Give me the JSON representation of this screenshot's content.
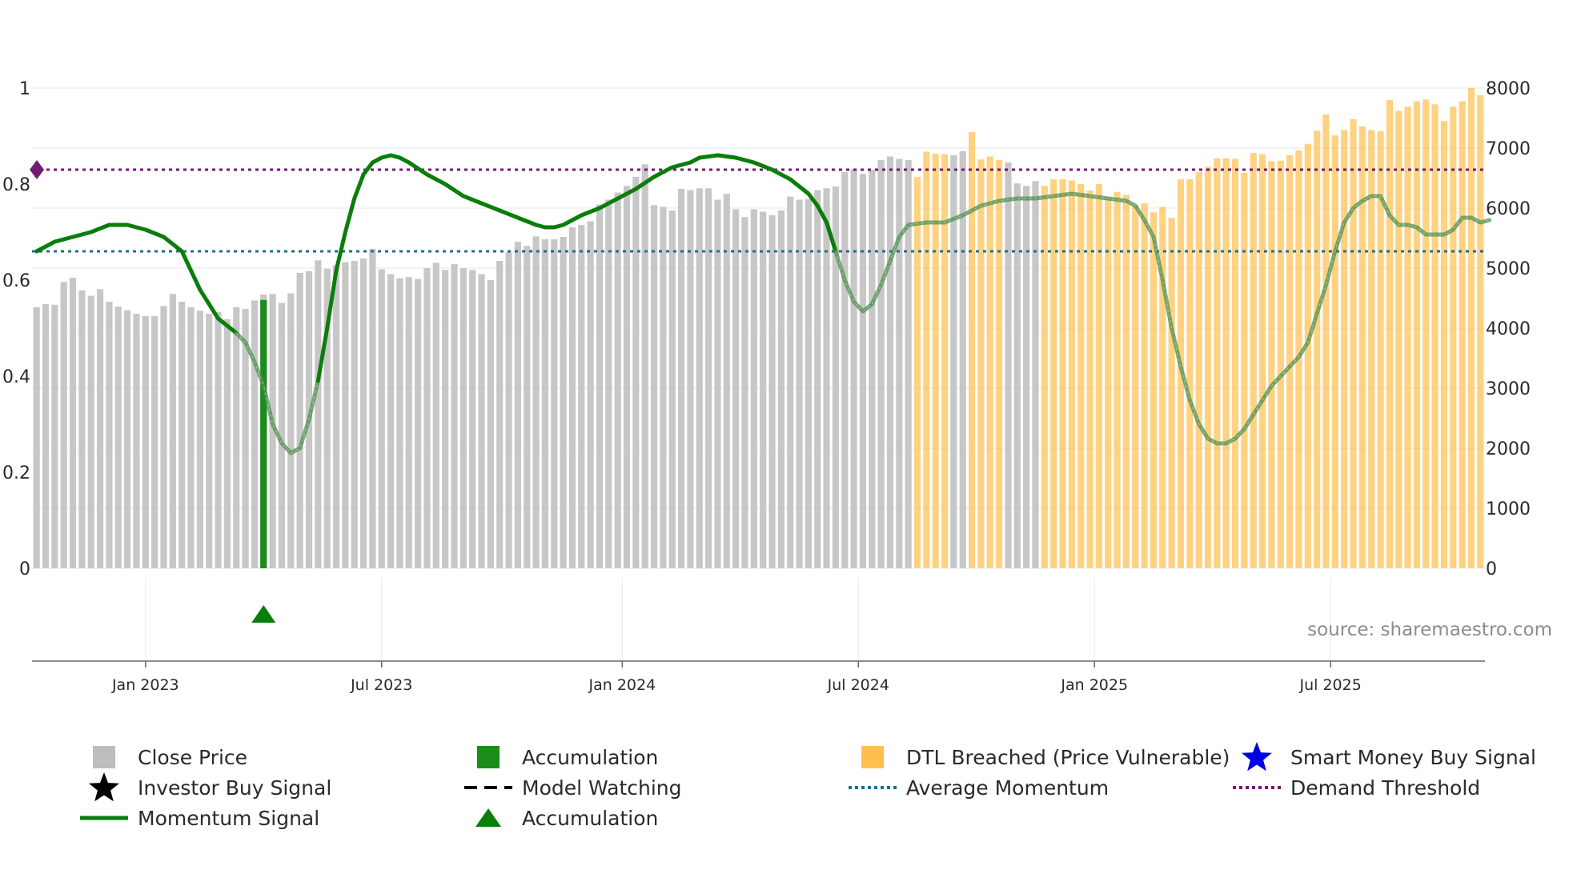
{
  "chart_data": {
    "type": "bar+line",
    "source": "source: sharemaestro.com",
    "left_axis": {
      "ticks": [
        "0",
        "0.2",
        "0.4",
        "0.6",
        "0.8",
        "1"
      ],
      "range": [
        0,
        1
      ]
    },
    "right_axis": {
      "ticks": [
        "0",
        "1000",
        "2000",
        "3000",
        "4000",
        "5000",
        "6000",
        "7000",
        "8000"
      ],
      "range": [
        0,
        8000
      ]
    },
    "x_ticks": [
      "Jan 2023",
      "Jul 2023",
      "Jan 2024",
      "Jul 2024",
      "Jan 2025",
      "Jul 2025"
    ],
    "x_tick_weeks": [
      12,
      38,
      64.5,
      90.5,
      116.5,
      142.5
    ],
    "close_price_weekly": [
      4350,
      4400,
      4390,
      4770,
      4840,
      4630,
      4540,
      4650,
      4440,
      4360,
      4300,
      4240,
      4200,
      4200,
      4370,
      4570,
      4440,
      4350,
      4290,
      4240,
      4270,
      4150,
      4350,
      4320,
      4460,
      4560,
      4570,
      4420,
      4580,
      4920,
      4950,
      5130,
      4990,
      5050,
      5100,
      5120,
      5160,
      5320,
      4980,
      4900,
      4830,
      4850,
      4820,
      5000,
      5090,
      4970,
      5070,
      5000,
      4970,
      4900,
      4800,
      5120,
      5260,
      5440,
      5370,
      5530,
      5480,
      5480,
      5520,
      5680,
      5720,
      5780,
      6060,
      6140,
      6260,
      6370,
      6520,
      6730,
      6050,
      6020,
      5960,
      6320,
      6300,
      6330,
      6330,
      6140,
      6240,
      5980,
      5850,
      5980,
      5940,
      5880,
      5960,
      6190,
      6140,
      6150,
      6300,
      6330,
      6360,
      6600,
      6650,
      6570,
      6640,
      6800,
      6860,
      6820,
      6800,
      6520,
      6940,
      6910,
      6900,
      6880,
      6950,
      7270,
      6810,
      6860,
      6800,
      6760,
      6410,
      6370,
      6450,
      6370,
      6480,
      6480,
      6460,
      6400,
      6290,
      6400,
      6170,
      6270,
      6220,
      6050,
      6080,
      5930,
      6020,
      5840,
      6480,
      6480,
      6600,
      6690,
      6830,
      6830,
      6820,
      6590,
      6920,
      6900,
      6780,
      6790,
      6880,
      6960,
      7070,
      7290,
      7560,
      7210,
      7300,
      7480,
      7360,
      7300,
      7280,
      7800,
      7620,
      7690,
      7780,
      7810,
      7730,
      7450,
      7690,
      7780,
      8000,
      7880
    ],
    "dtl_breached_weeks": [
      97,
      98,
      99,
      100,
      103,
      104,
      105,
      106,
      111,
      112,
      113,
      114,
      115,
      116,
      117,
      118,
      119,
      120,
      121,
      122,
      123,
      124,
      125,
      126,
      127,
      128,
      129,
      130,
      131,
      132,
      133,
      134,
      135,
      136,
      137,
      138,
      139,
      140,
      141,
      142,
      143,
      144,
      145,
      146,
      147,
      148,
      149,
      150,
      151,
      152,
      153,
      154,
      155,
      156,
      157,
      158,
      159
    ],
    "accumulation_bar": {
      "week": 25,
      "value": 4470
    },
    "accumulation_marker": {
      "week": 25,
      "label": "Accumulation"
    },
    "momentum_signal": [
      [
        0,
        0.66
      ],
      [
        2,
        0.68
      ],
      [
        4,
        0.69
      ],
      [
        6,
        0.7
      ],
      [
        8,
        0.715
      ],
      [
        10,
        0.715
      ],
      [
        12,
        0.705
      ],
      [
        14,
        0.69
      ],
      [
        16,
        0.66
      ],
      [
        18,
        0.58
      ],
      [
        20,
        0.52
      ],
      [
        22,
        0.49
      ],
      [
        23,
        0.47
      ],
      [
        24,
        0.43
      ],
      [
        25,
        0.38
      ],
      [
        26,
        0.3
      ],
      [
        27,
        0.26
      ],
      [
        28,
        0.24
      ],
      [
        29,
        0.25
      ],
      [
        30,
        0.31
      ],
      [
        31,
        0.39
      ],
      [
        32,
        0.5
      ],
      [
        33,
        0.62
      ],
      [
        34,
        0.7
      ],
      [
        35,
        0.77
      ],
      [
        36,
        0.82
      ],
      [
        37,
        0.845
      ],
      [
        38,
        0.855
      ],
      [
        39,
        0.86
      ],
      [
        40,
        0.855
      ],
      [
        41,
        0.845
      ],
      [
        43,
        0.82
      ],
      [
        45,
        0.8
      ],
      [
        47,
        0.775
      ],
      [
        49,
        0.76
      ],
      [
        51,
        0.745
      ],
      [
        53,
        0.73
      ],
      [
        55,
        0.715
      ],
      [
        56,
        0.71
      ],
      [
        57,
        0.71
      ],
      [
        58,
        0.715
      ],
      [
        60,
        0.735
      ],
      [
        62,
        0.75
      ],
      [
        64,
        0.77
      ],
      [
        66,
        0.79
      ],
      [
        68,
        0.815
      ],
      [
        70,
        0.835
      ],
      [
        72,
        0.845
      ],
      [
        73,
        0.855
      ],
      [
        75,
        0.86
      ],
      [
        77,
        0.855
      ],
      [
        79,
        0.845
      ],
      [
        81,
        0.83
      ],
      [
        83,
        0.81
      ],
      [
        85,
        0.78
      ],
      [
        86,
        0.755
      ],
      [
        87,
        0.72
      ],
      [
        88,
        0.66
      ],
      [
        89,
        0.6
      ],
      [
        90,
        0.555
      ],
      [
        91,
        0.535
      ],
      [
        92,
        0.55
      ],
      [
        93,
        0.59
      ],
      [
        94,
        0.64
      ],
      [
        95,
        0.69
      ],
      [
        96,
        0.715
      ],
      [
        98,
        0.72
      ],
      [
        100,
        0.72
      ],
      [
        102,
        0.735
      ],
      [
        104,
        0.755
      ],
      [
        106,
        0.765
      ],
      [
        108,
        0.77
      ],
      [
        110,
        0.77
      ],
      [
        112,
        0.775
      ],
      [
        114,
        0.78
      ],
      [
        116,
        0.775
      ],
      [
        118,
        0.77
      ],
      [
        120,
        0.765
      ],
      [
        121,
        0.755
      ],
      [
        122,
        0.725
      ],
      [
        123,
        0.69
      ],
      [
        124,
        0.6
      ],
      [
        125,
        0.5
      ],
      [
        126,
        0.42
      ],
      [
        127,
        0.35
      ],
      [
        128,
        0.3
      ],
      [
        129,
        0.27
      ],
      [
        130,
        0.26
      ],
      [
        131,
        0.26
      ],
      [
        132,
        0.27
      ],
      [
        133,
        0.29
      ],
      [
        134,
        0.32
      ],
      [
        135,
        0.35
      ],
      [
        136,
        0.38
      ],
      [
        137,
        0.4
      ],
      [
        138,
        0.42
      ],
      [
        139,
        0.44
      ],
      [
        140,
        0.47
      ],
      [
        141,
        0.53
      ],
      [
        142,
        0.59
      ],
      [
        143,
        0.66
      ],
      [
        144,
        0.72
      ],
      [
        145,
        0.75
      ],
      [
        146,
        0.765
      ],
      [
        147,
        0.775
      ],
      [
        148,
        0.775
      ],
      [
        149,
        0.735
      ],
      [
        150,
        0.715
      ],
      [
        151,
        0.715
      ],
      [
        152,
        0.71
      ],
      [
        153,
        0.695
      ],
      [
        154,
        0.695
      ],
      [
        155,
        0.695
      ],
      [
        156,
        0.705
      ],
      [
        157,
        0.73
      ],
      [
        158,
        0.73
      ],
      [
        159,
        0.72
      ],
      [
        160,
        0.725
      ]
    ],
    "momentum_faded_ranges": [
      [
        22,
        31
      ],
      [
        88,
        160
      ]
    ],
    "average_momentum": 0.66,
    "demand_threshold": 0.83,
    "demand_marker_value": 0.83,
    "colors": {
      "close_price": "#bdbdbd",
      "accumulation": "#1a8c1a",
      "dtl_breached": "#ffbf4d",
      "momentum": "#0a7d0a",
      "momentum_faded": "#4d8c4d",
      "average_momentum": "#1f6f8f",
      "demand_threshold": "#731a73",
      "smart_money": "#0000e6",
      "investor": "#000000"
    },
    "legend": [
      {
        "label": "Close Price",
        "icon": "gray-square-icon",
        "color": "#bdbdbd"
      },
      {
        "label": "Accumulation",
        "icon": "green-square-icon",
        "color": "#1a8c1a"
      },
      {
        "label": "DTL Breached (Price Vulnerable)",
        "icon": "orange-square-icon",
        "color": "#ffbf4d"
      },
      {
        "label": "Smart Money Buy Signal",
        "icon": "blue-star-icon",
        "color": "#0000e6"
      },
      {
        "label": "Investor Buy Signal",
        "icon": "black-star-icon",
        "color": "#000000"
      },
      {
        "label": "Model Watching",
        "icon": "black-dashed-line-icon",
        "color": "#000000"
      },
      {
        "label": "Average Momentum",
        "icon": "teal-dotted-line-icon",
        "color": "#1f6f8f"
      },
      {
        "label": "Demand Threshold",
        "icon": "purple-dotted-line-icon",
        "color": "#731a73"
      },
      {
        "label": "Momentum Signal",
        "icon": "green-line-icon",
        "color": "#0a7d0a"
      },
      {
        "label": "Accumulation",
        "icon": "green-triangle-icon",
        "color": "#0a7d0a"
      }
    ]
  }
}
